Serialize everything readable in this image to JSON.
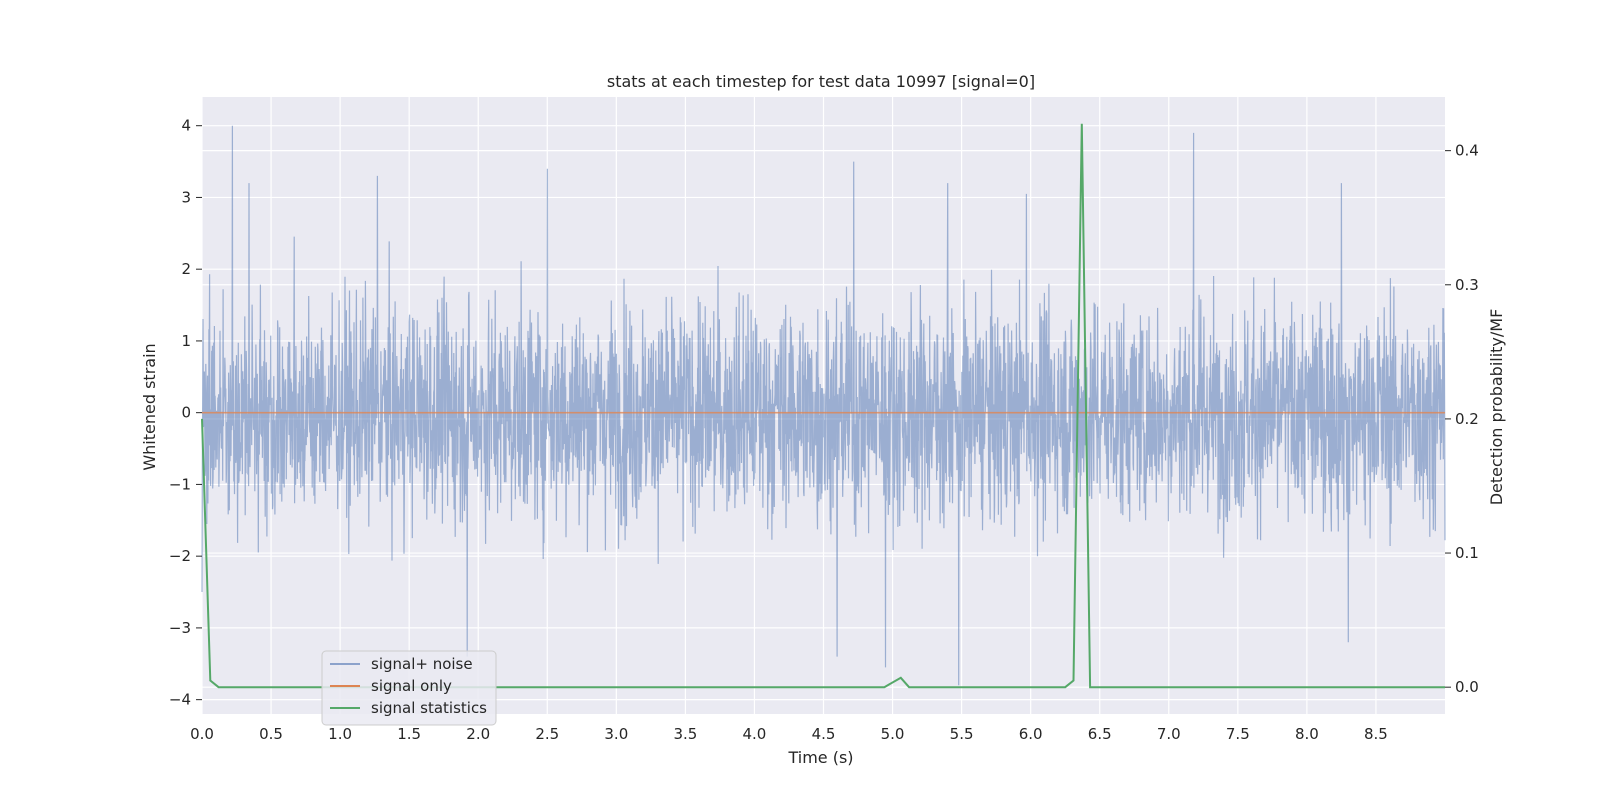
{
  "chart_data": {
    "type": "line",
    "title": "stats at each timestep for test data 10997 [signal=0]",
    "xlabel": "Time (s)",
    "ylabel": "Whitened strain",
    "y2label": "Detection probability/MF",
    "xlim": [
      0,
      9
    ],
    "ylim": [
      -4.2,
      4.4
    ],
    "y2lim": [
      -0.02,
      0.44
    ],
    "xticks": [
      "0.0",
      "0.5",
      "1.0",
      "1.5",
      "2.0",
      "2.5",
      "3.0",
      "3.5",
      "4.0",
      "4.5",
      "5.0",
      "5.5",
      "6.0",
      "6.5",
      "7.0",
      "7.5",
      "8.0",
      "8.5"
    ],
    "yticks": [
      "4",
      "3",
      "2",
      "1",
      "0",
      "−1",
      "−2",
      "−3",
      "−4"
    ],
    "y2ticks": [
      "0.4",
      "0.3",
      "0.2",
      "0.1",
      "0.0"
    ],
    "grid": true,
    "legend_position": "lower-left",
    "colors": {
      "signal_noise": "#4c72b0",
      "signal_only": "#dd8452",
      "signal_statistics": "#55a868",
      "background": "#eaeaf2"
    },
    "series": [
      {
        "name": "signal+ noise",
        "axis": "left",
        "style": "dense noise, roughly ±2 with peaks near ±4",
        "peaks": [
          {
            "x": 0.22,
            "y": 4.0
          },
          {
            "x": 0.34,
            "y": 3.2
          },
          {
            "x": 1.27,
            "y": 3.3
          },
          {
            "x": 2.5,
            "y": 3.4
          },
          {
            "x": 4.72,
            "y": 3.5
          },
          {
            "x": 5.4,
            "y": 3.2
          },
          {
            "x": 5.97,
            "y": 3.05
          },
          {
            "x": 7.18,
            "y": 3.9
          },
          {
            "x": 8.25,
            "y": 3.2
          },
          {
            "x": 1.92,
            "y": -3.4
          },
          {
            "x": 4.6,
            "y": -3.4
          },
          {
            "x": 4.95,
            "y": -3.55
          },
          {
            "x": 5.48,
            "y": -3.8
          },
          {
            "x": 8.3,
            "y": -3.2
          },
          {
            "x": 0.0,
            "y": -2.5
          }
        ]
      },
      {
        "name": "signal only",
        "axis": "left",
        "x": [
          0,
          9
        ],
        "y": [
          0,
          0
        ]
      },
      {
        "name": "signal statistics",
        "axis": "right",
        "x": [
          0.0,
          0.06,
          0.12,
          4.94,
          5.06,
          5.12,
          6.25,
          6.31,
          6.37,
          6.43,
          9.0
        ],
        "y": [
          0.2,
          0.005,
          0.0,
          0.0,
          0.007,
          0.0,
          0.0,
          0.005,
          0.42,
          0.0,
          0.0
        ]
      }
    ]
  }
}
